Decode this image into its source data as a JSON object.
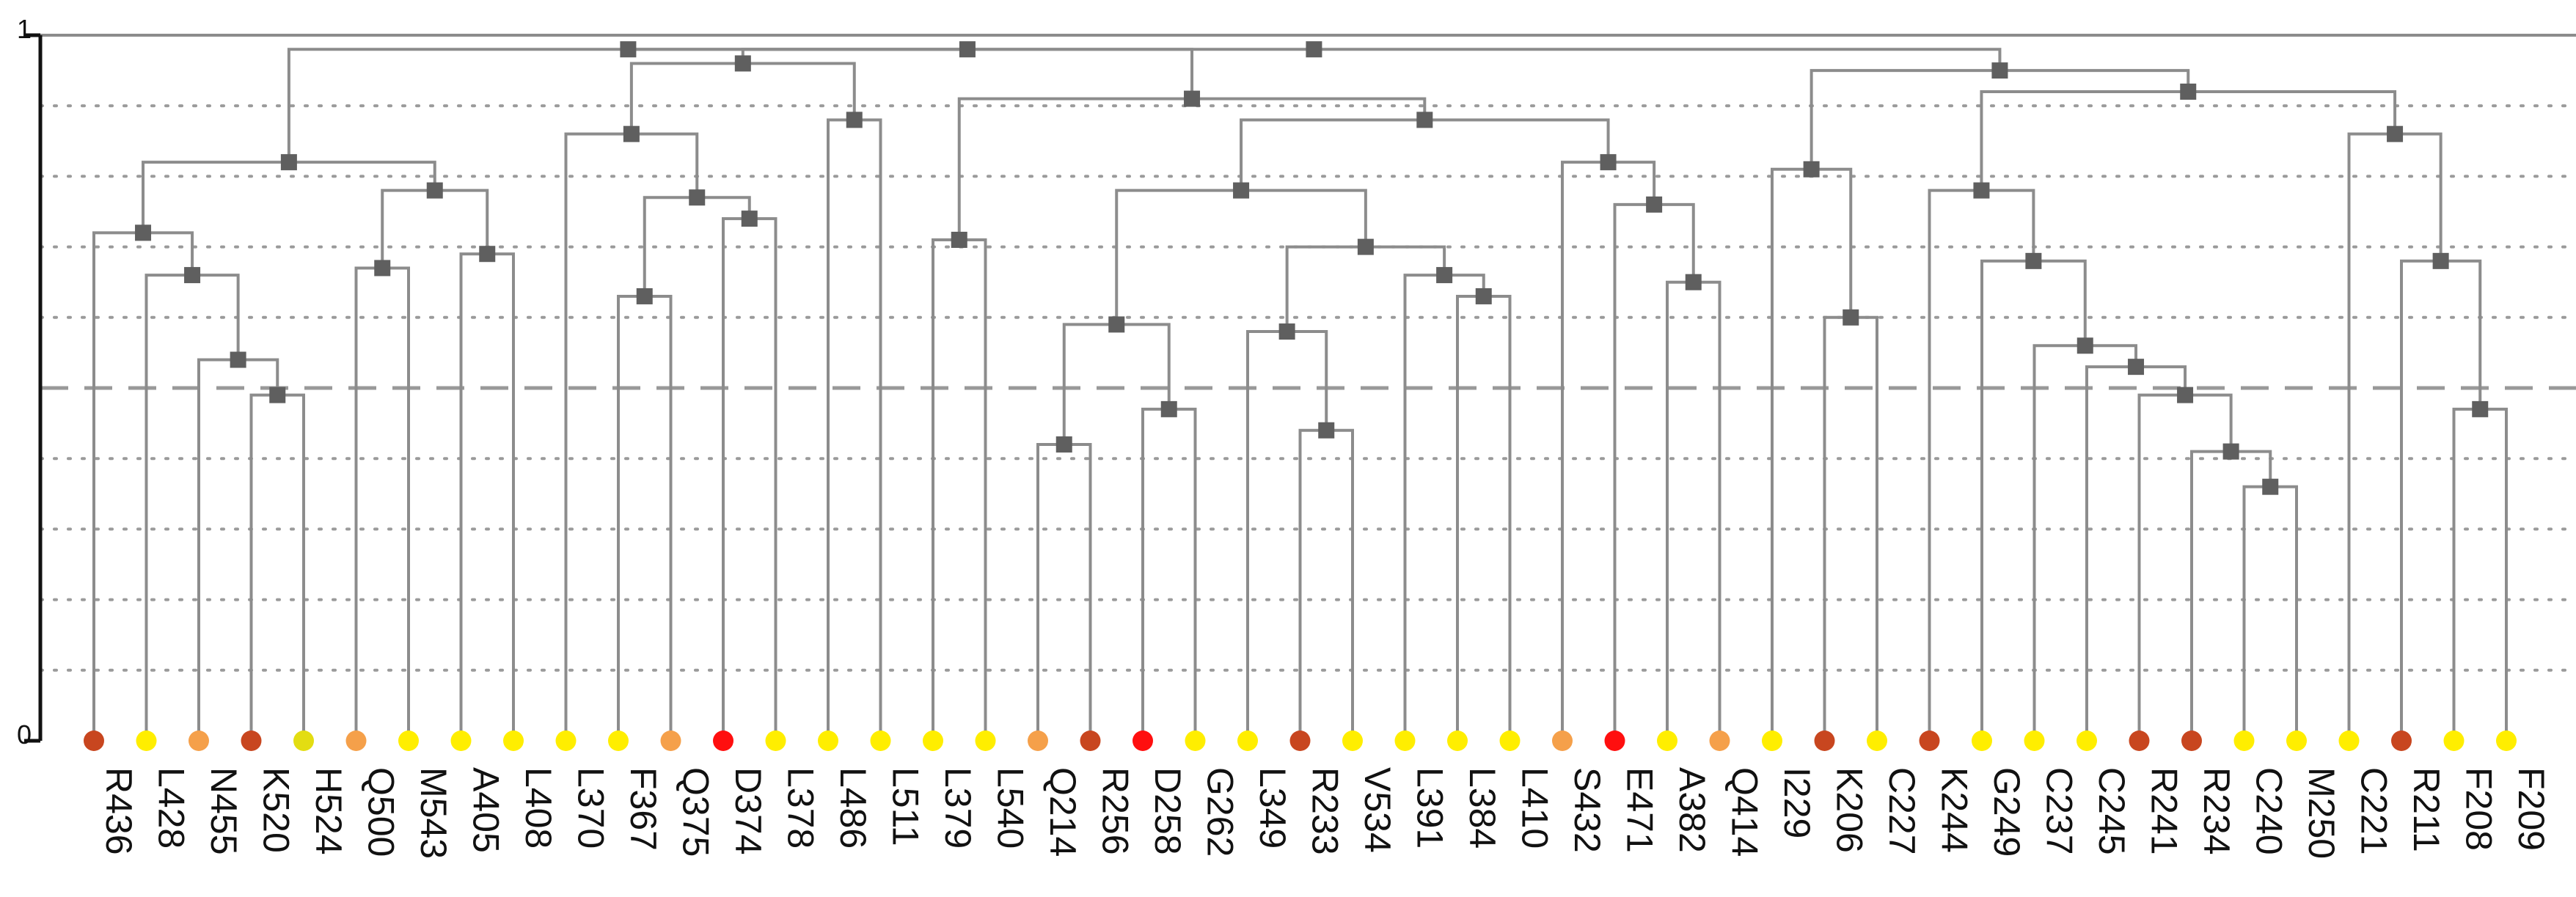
{
  "chart_data": {
    "type": "dendrogram",
    "title": "",
    "xlabel": "",
    "ylabel": "",
    "ylim": [
      0,
      1
    ],
    "yticks": [
      {
        "value": 0,
        "label": "0"
      },
      {
        "value": 1,
        "label": "1"
      }
    ],
    "gridlines": [
      0.1,
      0.2,
      0.3,
      0.4,
      0.6,
      0.7,
      0.8,
      0.9
    ],
    "threshold": 0.5,
    "colors": {
      "branch": "#8c8c8c",
      "node": "#5f5f5f",
      "grid": "#9a9a9a",
      "axis": "#111111",
      "threshold": "#999999"
    },
    "leaves": [
      {
        "label": "R436",
        "color": "#c8461f"
      },
      {
        "label": "L428",
        "color": "#ffee00"
      },
      {
        "label": "N455",
        "color": "#f5a04a"
      },
      {
        "label": "K520",
        "color": "#c8461f"
      },
      {
        "label": "H524",
        "color": "#e3dd12"
      },
      {
        "label": "Q500",
        "color": "#f5a04a"
      },
      {
        "label": "M543",
        "color": "#ffee00"
      },
      {
        "label": "A405",
        "color": "#ffee00"
      },
      {
        "label": "L408",
        "color": "#ffee00"
      },
      {
        "label": "L370",
        "color": "#ffee00"
      },
      {
        "label": "F367",
        "color": "#ffee00"
      },
      {
        "label": "Q375",
        "color": "#f5a04a"
      },
      {
        "label": "D374",
        "color": "#ff0f0f"
      },
      {
        "label": "L378",
        "color": "#ffee00"
      },
      {
        "label": "L486",
        "color": "#ffee00"
      },
      {
        "label": "L511",
        "color": "#ffee00"
      },
      {
        "label": "L379",
        "color": "#ffee00"
      },
      {
        "label": "L540",
        "color": "#ffee00"
      },
      {
        "label": "Q214",
        "color": "#f5a04a"
      },
      {
        "label": "R256",
        "color": "#c8461f"
      },
      {
        "label": "D258",
        "color": "#ff0f0f"
      },
      {
        "label": "G262",
        "color": "#ffee00"
      },
      {
        "label": "L349",
        "color": "#ffee00"
      },
      {
        "label": "R233",
        "color": "#c8461f"
      },
      {
        "label": "V534",
        "color": "#ffee00"
      },
      {
        "label": "L391",
        "color": "#ffee00"
      },
      {
        "label": "L384",
        "color": "#ffee00"
      },
      {
        "label": "L410",
        "color": "#ffee00"
      },
      {
        "label": "S432",
        "color": "#f5a04a"
      },
      {
        "label": "E471",
        "color": "#ff0f0f"
      },
      {
        "label": "A382",
        "color": "#ffee00"
      },
      {
        "label": "Q414",
        "color": "#f5a04a"
      },
      {
        "label": "I229",
        "color": "#ffee00"
      },
      {
        "label": "K206",
        "color": "#c8461f"
      },
      {
        "label": "C227",
        "color": "#ffee00"
      },
      {
        "label": "K244",
        "color": "#c8461f"
      },
      {
        "label": "G249",
        "color": "#ffee00"
      },
      {
        "label": "C237",
        "color": "#ffee00"
      },
      {
        "label": "C245",
        "color": "#ffee00"
      },
      {
        "label": "R241",
        "color": "#c8461f"
      },
      {
        "label": "R234",
        "color": "#c8461f"
      },
      {
        "label": "C240",
        "color": "#ffee00"
      },
      {
        "label": "M250",
        "color": "#ffee00"
      },
      {
        "label": "C221",
        "color": "#ffee00"
      },
      {
        "label": "R211",
        "color": "#c8461f"
      },
      {
        "label": "F208",
        "color": "#ffee00"
      },
      {
        "label": "F209",
        "color": "#ffee00"
      }
    ],
    "merges": [
      {
        "id": "n1",
        "children": [
          3,
          4
        ],
        "height": 0.49
      },
      {
        "id": "n2",
        "children": [
          2,
          "n1"
        ],
        "height": 0.54
      },
      {
        "id": "n3",
        "children": [
          1,
          "n2"
        ],
        "height": 0.66
      },
      {
        "id": "n4",
        "children": [
          0,
          "n3"
        ],
        "height": 0.72
      },
      {
        "id": "n5",
        "children": [
          5,
          6
        ],
        "height": 0.67
      },
      {
        "id": "n6",
        "children": [
          7,
          8
        ],
        "height": 0.69
      },
      {
        "id": "n7",
        "children": [
          "n5",
          "n6"
        ],
        "height": 0.78
      },
      {
        "id": "n8",
        "children": [
          "n4",
          "n7"
        ],
        "height": 0.82
      },
      {
        "id": "n9",
        "children": [
          10,
          11
        ],
        "height": 0.63
      },
      {
        "id": "n10",
        "children": [
          12,
          13
        ],
        "height": 0.74
      },
      {
        "id": "n11",
        "children": [
          "n9",
          "n10"
        ],
        "height": 0.77
      },
      {
        "id": "n12",
        "children": [
          9,
          "n11"
        ],
        "height": 0.86
      },
      {
        "id": "n13",
        "children": [
          14,
          15
        ],
        "height": 0.88
      },
      {
        "id": "n14",
        "children": [
          "n12",
          "n13"
        ],
        "height": 0.96
      },
      {
        "id": "n15",
        "children": [
          16,
          17
        ],
        "height": 0.71
      },
      {
        "id": "n16",
        "children": [
          18,
          19
        ],
        "height": 0.42
      },
      {
        "id": "n17",
        "children": [
          20,
          21
        ],
        "height": 0.47
      },
      {
        "id": "n18",
        "children": [
          "n16",
          "n17"
        ],
        "height": 0.59
      },
      {
        "id": "n19",
        "children": [
          23,
          24
        ],
        "height": 0.44
      },
      {
        "id": "n20",
        "children": [
          22,
          "n19"
        ],
        "height": 0.58
      },
      {
        "id": "n21",
        "children": [
          26,
          27
        ],
        "height": 0.63
      },
      {
        "id": "n22",
        "children": [
          25,
          "n21"
        ],
        "height": 0.66
      },
      {
        "id": "n23",
        "children": [
          "n20",
          "n22"
        ],
        "height": 0.7
      },
      {
        "id": "n24",
        "children": [
          "n18",
          "n23"
        ],
        "height": 0.78
      },
      {
        "id": "n25",
        "children": [
          30,
          31
        ],
        "height": 0.65
      },
      {
        "id": "n26",
        "children": [
          29,
          "n25"
        ],
        "height": 0.76
      },
      {
        "id": "n27",
        "children": [
          28,
          "n26"
        ],
        "height": 0.82
      },
      {
        "id": "n28",
        "children": [
          "n24",
          "n27"
        ],
        "height": 0.88
      },
      {
        "id": "n29",
        "children": [
          "n15",
          "n28"
        ],
        "height": 0.91
      },
      {
        "id": "n30",
        "children": [
          "n14",
          "n29"
        ],
        "height": 0.98
      },
      {
        "id": "n31",
        "children": [
          "n8",
          "n30"
        ],
        "height": 0.98
      },
      {
        "id": "n32",
        "children": [
          33,
          34
        ],
        "height": 0.6
      },
      {
        "id": "n33",
        "children": [
          32,
          "n32"
        ],
        "height": 0.81
      },
      {
        "id": "n34",
        "children": [
          41,
          42
        ],
        "height": 0.36
      },
      {
        "id": "n35",
        "children": [
          40,
          "n34"
        ],
        "height": 0.41
      },
      {
        "id": "n36",
        "children": [
          39,
          "n35"
        ],
        "height": 0.49
      },
      {
        "id": "n37",
        "children": [
          38,
          "n36"
        ],
        "height": 0.53
      },
      {
        "id": "n38",
        "children": [
          37,
          "n37"
        ],
        "height": 0.56
      },
      {
        "id": "n39",
        "children": [
          36,
          "n38"
        ],
        "height": 0.68
      },
      {
        "id": "n40",
        "children": [
          35,
          "n39"
        ],
        "height": 0.78
      },
      {
        "id": "n41",
        "children": [
          45,
          46
        ],
        "height": 0.47
      },
      {
        "id": "n42",
        "children": [
          44,
          "n41"
        ],
        "height": 0.68
      },
      {
        "id": "n43",
        "children": [
          43,
          "n42"
        ],
        "height": 0.86
      },
      {
        "id": "n44",
        "children": [
          "n40",
          "n43"
        ],
        "height": 0.92
      },
      {
        "id": "n45",
        "children": [
          "n33",
          "n44"
        ],
        "height": 0.95
      },
      {
        "id": "n46",
        "children": [
          "n31",
          "n45"
        ],
        "height": 0.98
      }
    ]
  }
}
